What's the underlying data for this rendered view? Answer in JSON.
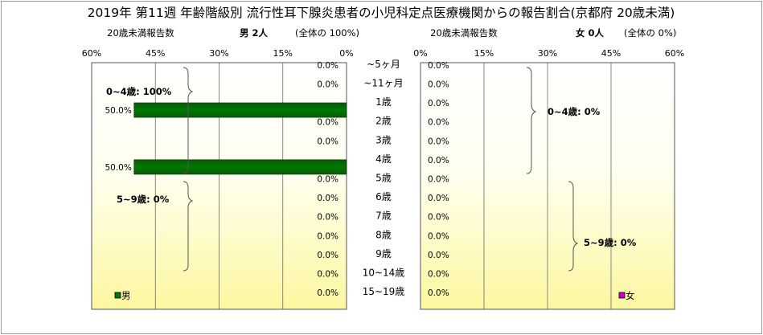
{
  "chart_data": {
    "type": "bar",
    "title": "2019年 第11週 年齢階級別 流行性耳下腺炎患者の小児科定点医療機関からの報告割合(京都府 20歳未満)",
    "male": {
      "subheader": "20歳未満報告数",
      "header": "男  2人",
      "note": "(全体の  100%)",
      "values": [
        0,
        0,
        50,
        0,
        0,
        50,
        0,
        0,
        0,
        0,
        0,
        0,
        0
      ],
      "labels": [
        "0.0%",
        "0.0%",
        "50.0%",
        "0.0%",
        "0.0%",
        "50.0%",
        "0.0%",
        "0.0%",
        "0.0%",
        "0.0%",
        "0.0%",
        "0.0%",
        "0.0%"
      ],
      "ticks": [
        "60%",
        "45%",
        "30%",
        "15%",
        "0%"
      ],
      "xlim": [
        0,
        60
      ],
      "color": "#007a00"
    },
    "female": {
      "subheader": "20歳未満報告数",
      "header": "女  0人",
      "note": "(全体の  0%)",
      "values": [
        0,
        0,
        0,
        0,
        0,
        0,
        0,
        0,
        0,
        0,
        0,
        0,
        0
      ],
      "labels": [
        "0.0%",
        "0.0%",
        "0.0%",
        "0.0%",
        "0.0%",
        "0.0%",
        "0.0%",
        "0.0%",
        "0.0%",
        "0.0%",
        "0.0%",
        "0.0%",
        "0.0%"
      ],
      "ticks": [
        "0%",
        "15%",
        "30%",
        "45%",
        "60%"
      ],
      "xlim": [
        0,
        60
      ],
      "color": "#cc00cc"
    },
    "categories": [
      "~5ヶ月",
      "~11ヶ月",
      "1歳",
      "2歳",
      "3歳",
      "4歳",
      "5歳",
      "6歳",
      "7歳",
      "8歳",
      "9歳",
      "10~14歳",
      "15~19歳"
    ],
    "groups": {
      "male_0_4": "0~4歳: 100%",
      "male_5_9": "5~9歳: 0%",
      "female_0_4": "0~4歳: 0%",
      "female_5_9": "5~9歳: 0%"
    },
    "legend": {
      "male": "男",
      "female": "女"
    },
    "grid": true
  }
}
